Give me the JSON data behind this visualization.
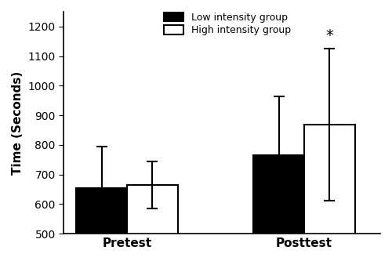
{
  "groups": [
    "Pretest",
    "Posttest"
  ],
  "low_means": [
    655,
    765
  ],
  "high_means": [
    665,
    868
  ],
  "low_sd": [
    140,
    200
  ],
  "high_sd": [
    80,
    257
  ],
  "bar_width": 0.4,
  "group_positions": [
    1.0,
    2.4
  ],
  "ylim": [
    500,
    1250
  ],
  "yticks": [
    500,
    600,
    700,
    800,
    900,
    1000,
    1100,
    1200
  ],
  "ylabel": "Time (Seconds)",
  "xlabel_labels": [
    "Pretest",
    "Posttest"
  ],
  "legend_low": "Low intensity group",
  "legend_high": "High intensity group",
  "color_low": "#000000",
  "color_high": "#ffffff",
  "edgecolor": "#000000",
  "significance_label": "*",
  "background_color": "#ffffff",
  "capsize": 5,
  "linewidth": 1.5
}
